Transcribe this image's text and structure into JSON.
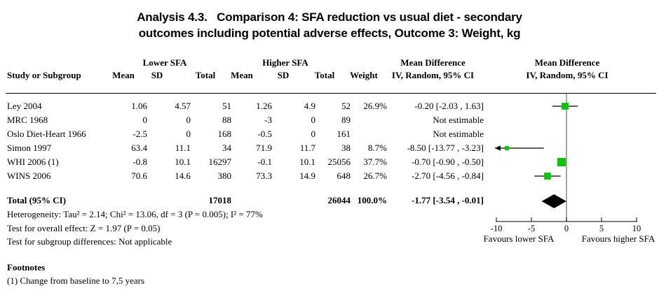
{
  "title": {
    "line1": "Analysis 4.3.   Comparison 4: SFA reduction vs usual diet - secondary",
    "line2": "outcomes including potential adverse effects, Outcome 3: Weight, kg"
  },
  "header": {
    "study": "Study or Subgroup",
    "group1": "Lower SFA",
    "group2": "Higher SFA",
    "mean": "Mean",
    "sd": "SD",
    "total": "Total",
    "weight": "Weight",
    "effect": "Mean Difference",
    "method": "IV, Random, 95% CI"
  },
  "stats": {
    "heterogeneity": "Heterogeneity: Tau² = 2.14; Chi² = 13.06, df = 3 (P = 0.005); I² = 77%",
    "overall": "Test for overall effect: Z = 1.97 (P = 0.05)",
    "subgroup": "Test for subgroup differences: Not applicable"
  },
  "footnotes": {
    "heading": "Footnotes",
    "items": [
      "(1) Change from baseline to 7,5 years"
    ]
  },
  "chart_data": {
    "type": "forest",
    "effect_measure": "Mean Difference",
    "model": "IV, Random, 95% CI",
    "axis": {
      "min": -10,
      "max": 10,
      "ticks": [
        -10,
        -5,
        0,
        5,
        10
      ],
      "zero": 0
    },
    "favours_left": "Favours lower SFA",
    "favours_right": "Favours higher SFA",
    "colors": {
      "square": "#0bc40b",
      "ci_line": "#000000",
      "zero_line": "#808080",
      "diamond": "#000000",
      "axis": "#000000"
    },
    "studies": [
      {
        "study": "Ley 2004",
        "mean1": "1.06",
        "sd1": "4.57",
        "total1": "51",
        "mean2": "1.26",
        "sd2": "4.9",
        "total2": "52",
        "weight": "26.9%",
        "ci_text": "-0.20 [-2.03 , 1.63]",
        "estimable": true,
        "estimate": -0.2,
        "ci_low": -2.03,
        "ci_high": 1.63,
        "weight_pct": 26.9
      },
      {
        "study": "MRC 1968",
        "mean1": "0",
        "sd1": "0",
        "total1": "88",
        "mean2": "-3",
        "sd2": "0",
        "total2": "89",
        "weight": "",
        "ci_text": "Not estimable",
        "estimable": false
      },
      {
        "study": "Oslo Diet-Heart 1966",
        "mean1": "-2.5",
        "sd1": "0",
        "total1": "168",
        "mean2": "-0.5",
        "sd2": "0",
        "total2": "161",
        "weight": "",
        "ci_text": "Not estimable",
        "estimable": false
      },
      {
        "study": "Simon 1997",
        "mean1": "63.4",
        "sd1": "11.1",
        "total1": "34",
        "mean2": "71.9",
        "sd2": "11.7",
        "total2": "38",
        "weight": "8.7%",
        "ci_text": "-8.50 [-13.77 , -3.23]",
        "estimable": true,
        "estimate": -8.5,
        "ci_low": -13.77,
        "ci_high": -3.23,
        "weight_pct": 8.7
      },
      {
        "study": "WHI 2006 (1)",
        "mean1": "-0.8",
        "sd1": "10.1",
        "total1": "16297",
        "mean2": "-0.1",
        "sd2": "10.1",
        "total2": "25056",
        "weight": "37.7%",
        "ci_text": "-0.70 [-0.90 , -0.50]",
        "estimable": true,
        "estimate": -0.7,
        "ci_low": -0.9,
        "ci_high": -0.5,
        "weight_pct": 37.7
      },
      {
        "study": "WINS 2006",
        "mean1": "70.6",
        "sd1": "14.6",
        "total1": "380",
        "mean2": "73.3",
        "sd2": "14.9",
        "total2": "648",
        "weight": "26.7%",
        "ci_text": "-2.70 [-4.56 , -0.84]",
        "estimable": true,
        "estimate": -2.7,
        "ci_low": -4.56,
        "ci_high": -0.84,
        "weight_pct": 26.7
      }
    ],
    "total": {
      "label": "Total (95% CI)",
      "total1": "17018",
      "total2": "26044",
      "weight": "100.0%",
      "ci_text": "-1.77 [-3.54 , -0.01]",
      "estimate": -1.77,
      "ci_low": -3.54,
      "ci_high": -0.01
    }
  }
}
